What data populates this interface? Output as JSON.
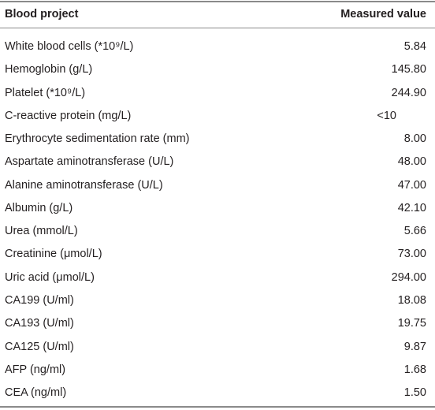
{
  "table": {
    "header": [
      "Blood project",
      "Measured value"
    ],
    "rows": [
      [
        "White blood cells (*10⁹/L)",
        "5.84"
      ],
      [
        "Hemoglobin (g/L)",
        "145.80"
      ],
      [
        "Platelet (*10⁹/L)",
        "244.90"
      ],
      [
        "C-reactive protein (mg/L)",
        "<10"
      ],
      [
        "Erythrocyte sedimentation rate (mm)",
        "8.00"
      ],
      [
        "Aspartate aminotransferase (U/L)",
        "48.00"
      ],
      [
        "Alanine aminotransferase (U/L)",
        "47.00"
      ],
      [
        "Albumin (g/L)",
        "42.10"
      ],
      [
        "Urea (mmol/L)",
        "5.66"
      ],
      [
        "Creatinine (μmol/L)",
        "73.00"
      ],
      [
        "Uric acid (μmol/L)",
        "294.00"
      ],
      [
        "CA199 (U/ml)",
        "18.08"
      ],
      [
        "CA193 (U/ml)",
        "19.75"
      ],
      [
        "CA125 (U/ml)",
        "9.87"
      ],
      [
        "AFP (ng/ml)",
        "1.68"
      ],
      [
        "CEA (ng/ml)",
        "1.50"
      ]
    ]
  }
}
